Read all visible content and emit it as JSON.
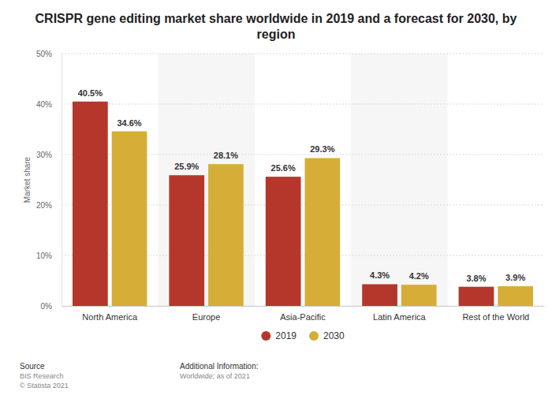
{
  "chart_data": {
    "type": "bar",
    "title": "CRISPR gene editing market share worldwide in 2019 and a forecast for 2030, by region",
    "y_label": "Market share",
    "categories": [
      "North America",
      "Europe",
      "Asia-Pacific",
      "Latin America",
      "Rest of the World"
    ],
    "series": [
      {
        "name": "2019",
        "color": "#b5372b",
        "values": [
          40.5,
          25.9,
          25.6,
          4.3,
          3.8
        ],
        "value_labels": [
          "40.5%",
          "25.9%",
          "25.6%",
          "4.3%",
          "3.8%"
        ]
      },
      {
        "name": "2030",
        "color": "#d6ae37",
        "values": [
          34.6,
          28.1,
          29.3,
          4.2,
          3.9
        ],
        "value_labels": [
          "34.6%",
          "28.1%",
          "29.3%",
          "4.2%",
          "3.9%"
        ]
      }
    ],
    "ylim": [
      0,
      50
    ],
    "yticks": [
      {
        "value": 0,
        "label": "0%"
      },
      {
        "value": 10,
        "label": "10%"
      },
      {
        "value": 20,
        "label": "20%"
      },
      {
        "value": 30,
        "label": "30%"
      },
      {
        "value": 40,
        "label": "40%"
      },
      {
        "value": 50,
        "label": "50%"
      }
    ],
    "grid": true,
    "legend": "bottom",
    "data_labels": true,
    "annotations": [
      "Source",
      "BIS Research",
      "© Statista 2021",
      "Additional Information:",
      "Worldwide; as of 2021"
    ]
  }
}
